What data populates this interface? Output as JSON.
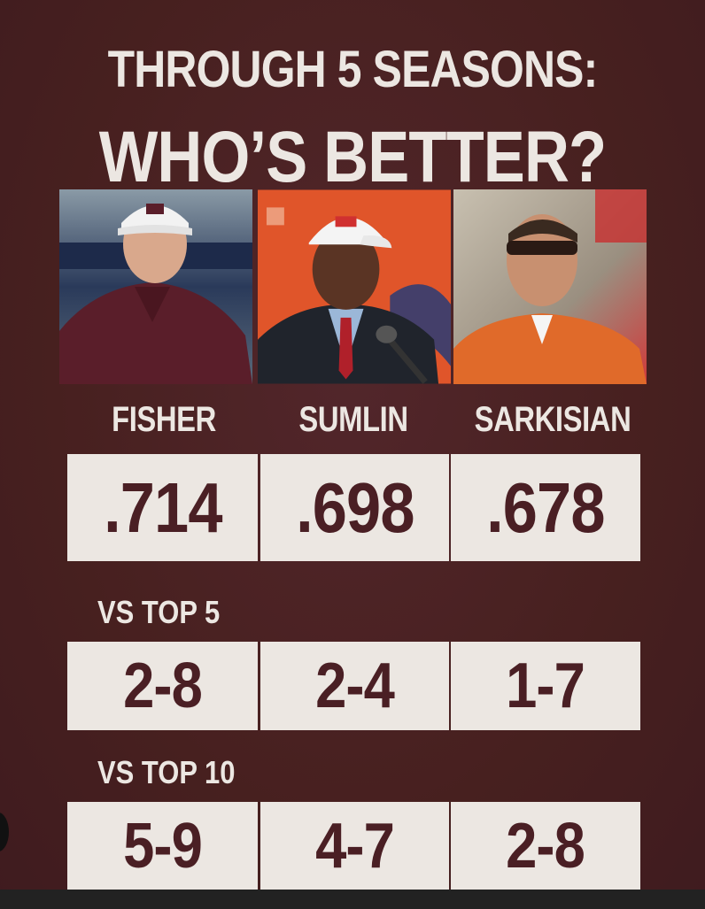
{
  "title": {
    "line1": "THROUGH 5 SEASONS:",
    "line2": "WHO’S BETTER?"
  },
  "coaches": [
    {
      "name": "FISHER",
      "photo": "coach-fisher-photo",
      "win_pct": ".714",
      "vs_top5": "2-8",
      "vs_top10": "5-9"
    },
    {
      "name": "SUMLIN",
      "photo": "coach-sumlin-photo",
      "win_pct": ".698",
      "vs_top5": "2-4",
      "vs_top10": "4-7"
    },
    {
      "name": "SARKISIAN",
      "photo": "coach-sarkisian-photo",
      "win_pct": ".678",
      "vs_top5": "1-7",
      "vs_top10": "2-8"
    }
  ],
  "sections": {
    "top5": "VS TOP 5",
    "top10": "VS TOP 10"
  },
  "colors": {
    "background": "#4a1f24",
    "panel": "#ece7e2",
    "text_light": "#ece7e2",
    "text_dark": "#4a1f24"
  }
}
